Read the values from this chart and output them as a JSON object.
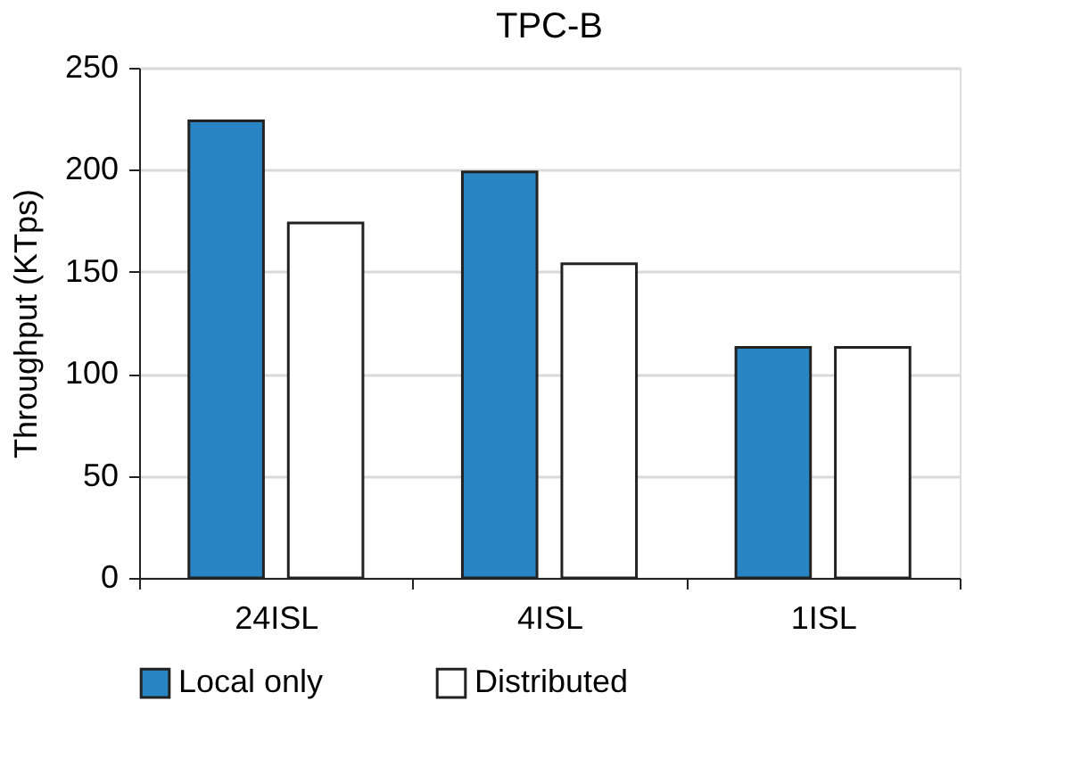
{
  "chart_data": {
    "type": "bar",
    "title": "TPC-B",
    "ylabel": "Throughput (KTps)",
    "categories": [
      "24ISL",
      "4ISL",
      "1ISL"
    ],
    "series": [
      {
        "name": "Local only",
        "color": "#2884c2",
        "values": [
          224,
          199,
          113
        ]
      },
      {
        "name": "Distributed",
        "color": "#ffffff",
        "values": [
          174,
          154,
          113
        ]
      }
    ],
    "ylim": [
      0,
      250
    ],
    "yticks": [
      0,
      50,
      100,
      150,
      200,
      250
    ],
    "grid": "y",
    "legend": "bottom"
  }
}
